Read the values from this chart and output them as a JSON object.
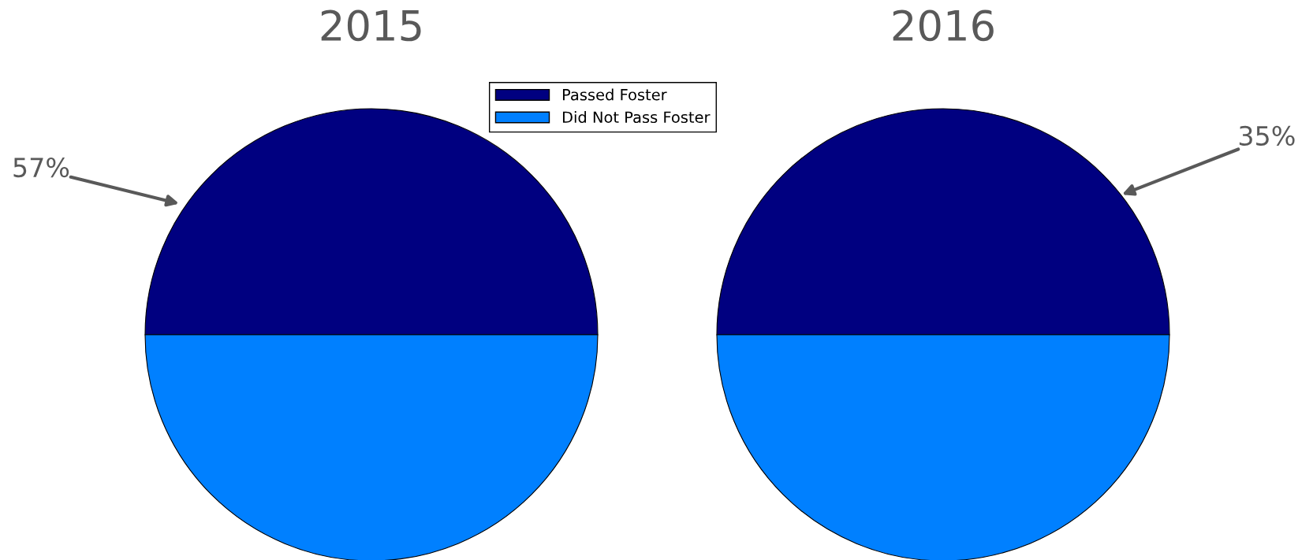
{
  "chart_data": [
    {
      "type": "pie",
      "title": "2015",
      "categories": [
        "Passed Foster",
        "Did Not Pass Foster"
      ],
      "values": [
        50,
        50
      ],
      "colors": [
        "#000080",
        "#0080ff"
      ],
      "legend": "top right",
      "annotations": [
        "57%"
      ]
    },
    {
      "type": "pie",
      "title": "2016",
      "values": [
        50,
        50
      ],
      "colors": [
        "#000080",
        "#0080ff"
      ],
      "annotations": [
        "35%"
      ]
    }
  ]
}
